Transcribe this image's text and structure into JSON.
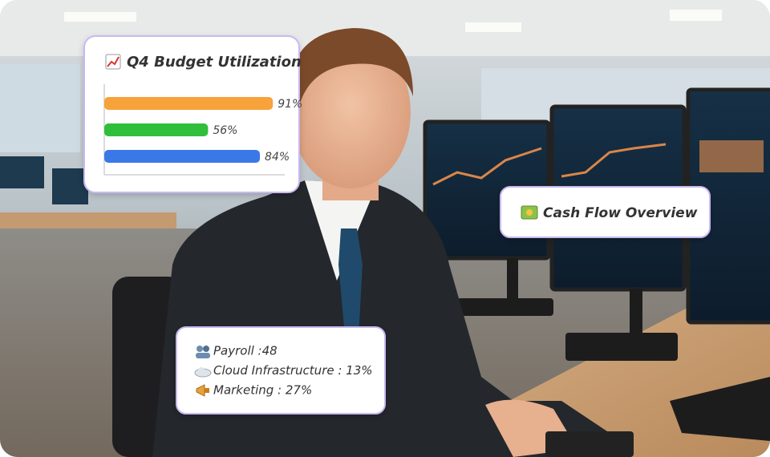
{
  "budget_card": {
    "title": "Q4 Budget Utilization",
    "xlim": [
      0,
      100
    ],
    "bars": [
      {
        "value": 91,
        "label": "91%",
        "color": "#f7a23b"
      },
      {
        "value": 56,
        "label": "56%",
        "color": "#2fbf3a"
      },
      {
        "value": 84,
        "label": "84%",
        "color": "#3a78e8"
      }
    ]
  },
  "cash_flow_card": {
    "title": "Cash Flow Overview"
  },
  "breakdown_card": {
    "items": [
      "Payroll :48",
      "Cloud Infrastructure : 13%",
      "Marketing :  27%"
    ]
  }
}
